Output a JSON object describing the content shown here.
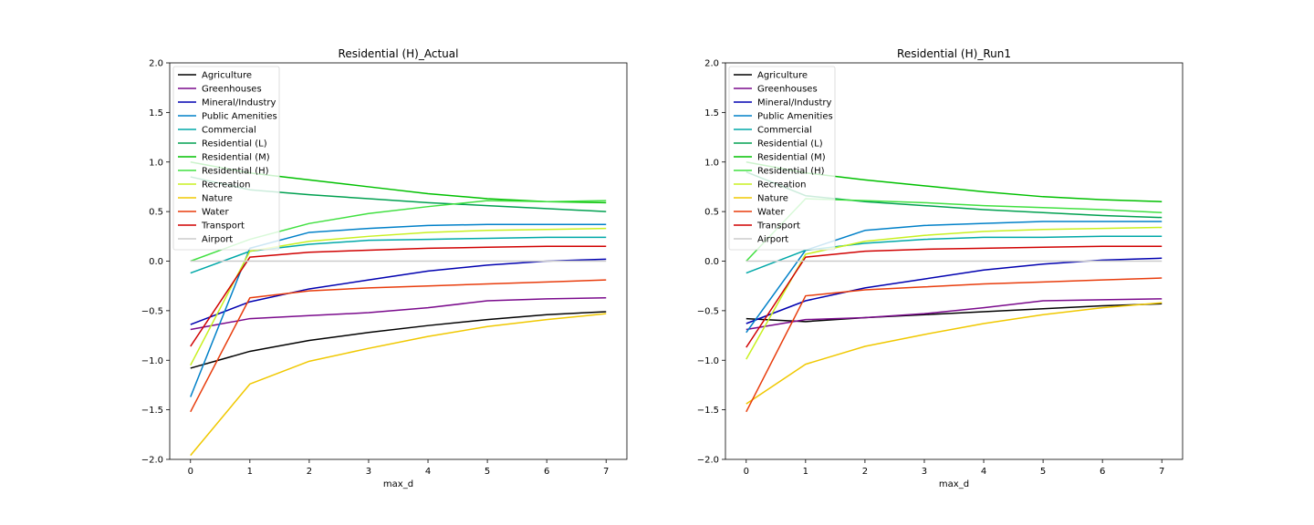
{
  "chart_data": [
    {
      "type": "line",
      "title": "Residential (H)_Actual",
      "xlabel": "max_d",
      "ylabel": "",
      "x": [
        0,
        1,
        2,
        3,
        4,
        5,
        6,
        7
      ],
      "xlim": [
        -0.35,
        7.35
      ],
      "ylim": [
        -2.0,
        2.0
      ],
      "xticks": [
        "0",
        "1",
        "2",
        "3",
        "4",
        "5",
        "6",
        "7"
      ],
      "yticks": [
        "2.0",
        "1.5",
        "1.0",
        "0.5",
        "0.0",
        "−0.5",
        "−1.0",
        "−1.5",
        "−2.0"
      ],
      "grid": false,
      "legend_position": "upper-left",
      "series": [
        {
          "name": "Agriculture",
          "color": "#000000",
          "values": [
            -1.08,
            -0.91,
            -0.8,
            -0.72,
            -0.65,
            -0.59,
            -0.54,
            -0.51
          ]
        },
        {
          "name": "Greenhouses",
          "color": "#7a0a8c",
          "values": [
            -0.69,
            -0.58,
            -0.55,
            -0.52,
            -0.47,
            -0.4,
            -0.38,
            -0.37
          ]
        },
        {
          "name": "Mineral/Industry",
          "color": "#0000b0",
          "values": [
            -0.64,
            -0.41,
            -0.28,
            -0.19,
            -0.1,
            -0.04,
            0.0,
            0.02
          ]
        },
        {
          "name": "Public Amenities",
          "color": "#0080c8",
          "values": [
            -1.37,
            0.13,
            0.29,
            0.33,
            0.36,
            0.37,
            0.37,
            0.37
          ]
        },
        {
          "name": "Commercial",
          "color": "#00a8a8",
          "values": [
            -0.12,
            0.1,
            0.17,
            0.21,
            0.22,
            0.23,
            0.24,
            0.24
          ]
        },
        {
          "name": "Residential (L)",
          "color": "#00a050",
          "values": [
            0.85,
            0.72,
            0.67,
            0.63,
            0.59,
            0.56,
            0.53,
            0.5
          ]
        },
        {
          "name": "Residential (M)",
          "color": "#00c000",
          "values": [
            1.0,
            0.89,
            0.82,
            0.75,
            0.68,
            0.63,
            0.6,
            0.59
          ]
        },
        {
          "name": "Residential (H)",
          "color": "#40e040",
          "values": [
            0.0,
            0.22,
            0.38,
            0.48,
            0.55,
            0.61,
            0.6,
            0.61
          ]
        },
        {
          "name": "Recreation",
          "color": "#c8f020",
          "values": [
            -1.05,
            0.1,
            0.2,
            0.25,
            0.29,
            0.31,
            0.32,
            0.33
          ]
        },
        {
          "name": "Nature",
          "color": "#f0c800",
          "values": [
            -1.96,
            -1.24,
            -1.01,
            -0.88,
            -0.76,
            -0.66,
            -0.59,
            -0.53
          ]
        },
        {
          "name": "Water",
          "color": "#e83c0c",
          "values": [
            -1.52,
            -0.37,
            -0.3,
            -0.27,
            -0.25,
            -0.23,
            -0.21,
            -0.19
          ]
        },
        {
          "name": "Transport",
          "color": "#d00000",
          "values": [
            -0.86,
            0.04,
            0.09,
            0.11,
            0.13,
            0.14,
            0.15,
            0.15
          ]
        },
        {
          "name": "Airport",
          "color": "#cccccc",
          "values": [
            0.0,
            0.0,
            0.0,
            0.0,
            0.0,
            0.0,
            0.0,
            0.0
          ]
        }
      ]
    },
    {
      "type": "line",
      "title": "Residential (H)_Run1",
      "xlabel": "max_d",
      "ylabel": "",
      "x": [
        0,
        1,
        2,
        3,
        4,
        5,
        6,
        7
      ],
      "xlim": [
        -0.35,
        7.35
      ],
      "ylim": [
        -2.0,
        2.0
      ],
      "xticks": [
        "0",
        "1",
        "2",
        "3",
        "4",
        "5",
        "6",
        "7"
      ],
      "yticks": [
        "2.0",
        "1.5",
        "1.0",
        "0.5",
        "0.0",
        "−0.5",
        "−1.0",
        "−1.5",
        "−2.0"
      ],
      "grid": false,
      "legend_position": "upper-left",
      "series": [
        {
          "name": "Agriculture",
          "color": "#000000",
          "values": [
            -0.58,
            -0.61,
            -0.57,
            -0.54,
            -0.51,
            -0.48,
            -0.45,
            -0.43
          ]
        },
        {
          "name": "Greenhouses",
          "color": "#7a0a8c",
          "values": [
            -0.69,
            -0.59,
            -0.57,
            -0.53,
            -0.47,
            -0.4,
            -0.39,
            -0.38
          ]
        },
        {
          "name": "Mineral/Industry",
          "color": "#0000b0",
          "values": [
            -0.63,
            -0.4,
            -0.27,
            -0.18,
            -0.09,
            -0.03,
            0.01,
            0.03
          ]
        },
        {
          "name": "Public Amenities",
          "color": "#0080c8",
          "values": [
            -0.72,
            0.11,
            0.31,
            0.36,
            0.38,
            0.4,
            0.4,
            0.4
          ]
        },
        {
          "name": "Commercial",
          "color": "#00a8a8",
          "values": [
            -0.12,
            0.11,
            0.18,
            0.22,
            0.24,
            0.24,
            0.25,
            0.25
          ]
        },
        {
          "name": "Residential (L)",
          "color": "#00a050",
          "values": [
            0.9,
            0.66,
            0.6,
            0.56,
            0.52,
            0.49,
            0.46,
            0.44
          ]
        },
        {
          "name": "Residential (M)",
          "color": "#00c000",
          "values": [
            1.0,
            0.89,
            0.82,
            0.76,
            0.7,
            0.65,
            0.62,
            0.6
          ]
        },
        {
          "name": "Residential (H)",
          "color": "#40e040",
          "values": [
            0.0,
            0.63,
            0.61,
            0.59,
            0.56,
            0.54,
            0.52,
            0.49
          ]
        },
        {
          "name": "Recreation",
          "color": "#c8f020",
          "values": [
            -0.99,
            0.07,
            0.2,
            0.26,
            0.3,
            0.32,
            0.33,
            0.34
          ]
        },
        {
          "name": "Nature",
          "color": "#f0c800",
          "values": [
            -1.44,
            -1.04,
            -0.86,
            -0.74,
            -0.63,
            -0.54,
            -0.47,
            -0.42
          ]
        },
        {
          "name": "Water",
          "color": "#e83c0c",
          "values": [
            -1.52,
            -0.35,
            -0.29,
            -0.26,
            -0.23,
            -0.21,
            -0.19,
            -0.17
          ]
        },
        {
          "name": "Transport",
          "color": "#d00000",
          "values": [
            -0.87,
            0.04,
            0.1,
            0.12,
            0.13,
            0.14,
            0.15,
            0.15
          ]
        },
        {
          "name": "Airport",
          "color": "#cccccc",
          "values": [
            0.0,
            0.0,
            0.0,
            0.0,
            0.0,
            0.0,
            0.0,
            0.0
          ]
        }
      ]
    }
  ]
}
